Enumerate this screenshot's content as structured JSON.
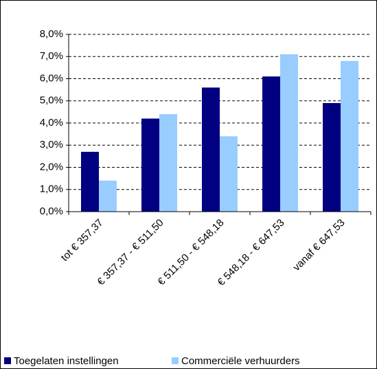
{
  "chart_data": {
    "type": "bar",
    "categories": [
      "tot € 357,37",
      "€ 357,37 - € 511,50",
      "€ 511,50 - € 548,18",
      "€ 548,18 - € 647,53",
      "vanaf € 647,53"
    ],
    "series": [
      {
        "name": "Toegelaten instellingen",
        "color": "#000080",
        "values": [
          2.7,
          4.2,
          5.6,
          6.1,
          4.9
        ]
      },
      {
        "name": "Commerciële verhuurders",
        "color": "#99ccff",
        "values": [
          1.4,
          4.4,
          3.4,
          7.1,
          6.8
        ]
      }
    ],
    "ylim": [
      0,
      8
    ],
    "yticks": [
      {
        "value": 0,
        "label": "0,0%"
      },
      {
        "value": 1,
        "label": "1,0%"
      },
      {
        "value": 2,
        "label": "2,0%"
      },
      {
        "value": 3,
        "label": "3,0%"
      },
      {
        "value": 4,
        "label": "4,0%"
      },
      {
        "value": 5,
        "label": "5,0%"
      },
      {
        "value": 6,
        "label": "6,0%"
      },
      {
        "value": 7,
        "label": "7,0%"
      },
      {
        "value": 8,
        "label": "8,0%"
      }
    ],
    "grid": true,
    "legend": "bottom"
  }
}
